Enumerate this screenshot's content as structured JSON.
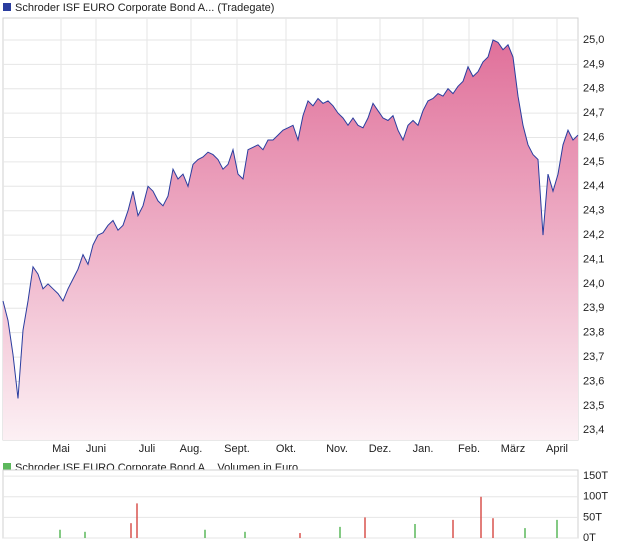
{
  "chart_data": [
    {
      "type": "area",
      "series": [
        {
          "name": "Schroder ISF EURO Corporate Bond A... (Tradegate)",
          "color": "#2a3d9f",
          "values": [
            23.93,
            23.85,
            23.71,
            23.53,
            23.81,
            23.93,
            24.07,
            24.04,
            23.98,
            24.0,
            23.98,
            23.96,
            23.93,
            23.98,
            24.02,
            24.06,
            24.12,
            24.08,
            24.16,
            24.2,
            24.21,
            24.24,
            24.26,
            24.22,
            24.24,
            24.3,
            24.38,
            24.28,
            24.32,
            24.4,
            24.38,
            24.34,
            24.32,
            24.36,
            24.47,
            24.43,
            24.45,
            24.4,
            24.49,
            24.51,
            24.52,
            24.54,
            24.53,
            24.51,
            24.47,
            24.49,
            24.55,
            24.45,
            24.43,
            24.55,
            24.56,
            24.57,
            24.55,
            24.59,
            24.59,
            24.61,
            24.63,
            24.64,
            24.65,
            24.59,
            24.69,
            24.75,
            24.73,
            24.76,
            24.74,
            24.75,
            24.73,
            24.7,
            24.68,
            24.65,
            24.68,
            24.65,
            24.64,
            24.68,
            24.74,
            24.71,
            24.68,
            24.67,
            24.69,
            24.63,
            24.59,
            24.65,
            24.67,
            24.65,
            24.71,
            24.75,
            24.76,
            24.78,
            24.77,
            24.8,
            24.78,
            24.81,
            24.83,
            24.89,
            24.85,
            24.87,
            24.91,
            24.93,
            25.0,
            24.99,
            24.96,
            24.98,
            24.93,
            24.77,
            24.65,
            24.57,
            24.53,
            24.51,
            24.2,
            24.45,
            24.38,
            24.45,
            24.57,
            24.63,
            24.59,
            24.61
          ]
        }
      ],
      "fill_top": "#e0709a",
      "fill_bottom": "#fcf0f4",
      "xlim": [
        0,
        115
      ],
      "xticks": [
        {
          "value": 11.6,
          "label": "Mai"
        },
        {
          "value": 18.6,
          "label": "Juni"
        },
        {
          "value": 28.8,
          "label": "Juli"
        },
        {
          "value": 37.6,
          "label": "Aug."
        },
        {
          "value": 46.8,
          "label": "Sept."
        },
        {
          "value": 56.6,
          "label": "Okt."
        },
        {
          "value": 66.8,
          "label": "Nov."
        },
        {
          "value": 75.4,
          "label": "Dez."
        },
        {
          "value": 84,
          "label": "Jan."
        },
        {
          "value": 93.2,
          "label": "Feb."
        },
        {
          "value": 102,
          "label": "März"
        },
        {
          "value": 110.8,
          "label": "April"
        }
      ],
      "ylim": [
        23.36,
        25.09
      ],
      "yticks": [
        {
          "value": 23.4,
          "label": "23,4"
        },
        {
          "value": 23.5,
          "label": "23,5"
        },
        {
          "value": 23.6,
          "label": "23,6"
        },
        {
          "value": 23.7,
          "label": "23,7"
        },
        {
          "value": 23.8,
          "label": "23,8"
        },
        {
          "value": 23.9,
          "label": "23,9"
        },
        {
          "value": 24.0,
          "label": "24,0"
        },
        {
          "value": 24.1,
          "label": "24,1"
        },
        {
          "value": 24.2,
          "label": "24,2"
        },
        {
          "value": 24.3,
          "label": "24,3"
        },
        {
          "value": 24.4,
          "label": "24,4"
        },
        {
          "value": 24.5,
          "label": "24,5"
        },
        {
          "value": 24.6,
          "label": "24,6"
        },
        {
          "value": 24.7,
          "label": "24,7"
        },
        {
          "value": 24.8,
          "label": "24,8"
        },
        {
          "value": 24.9,
          "label": "24,9"
        },
        {
          "value": 25.0,
          "label": "25,0"
        }
      ],
      "grid": true
    },
    {
      "type": "bar",
      "series": [
        {
          "name": "Schroder ISF EURO Corporate Bond A... Volumen in Euro",
          "color": "#5cb85c",
          "x": [
            11.4,
            16.4,
            25.6,
            26.8,
            40.4,
            48.4,
            59.4,
            67.4,
            72.4,
            82.4,
            90,
            95.6,
            98,
            104.4,
            110.8
          ],
          "values": [
            20,
            15,
            36,
            84,
            20,
            15,
            12,
            27,
            50,
            34,
            44,
            100,
            48,
            24,
            44
          ],
          "colors": [
            "#5cb85c",
            "#5cb85c",
            "#d9534f",
            "#d9534f",
            "#5cb85c",
            "#5cb85c",
            "#d9534f",
            "#5cb85c",
            "#d9534f",
            "#5cb85c",
            "#d9534f",
            "#d9534f",
            "#d9534f",
            "#5cb85c",
            "#5cb85c"
          ]
        }
      ],
      "xlim": [
        0,
        115
      ],
      "ylim": [
        0,
        165
      ],
      "yticks": [
        {
          "value": 0,
          "label": "0T"
        },
        {
          "value": 50,
          "label": "50T"
        },
        {
          "value": 100,
          "label": "100T"
        },
        {
          "value": 150,
          "label": "150T"
        }
      ],
      "grid": true
    }
  ]
}
